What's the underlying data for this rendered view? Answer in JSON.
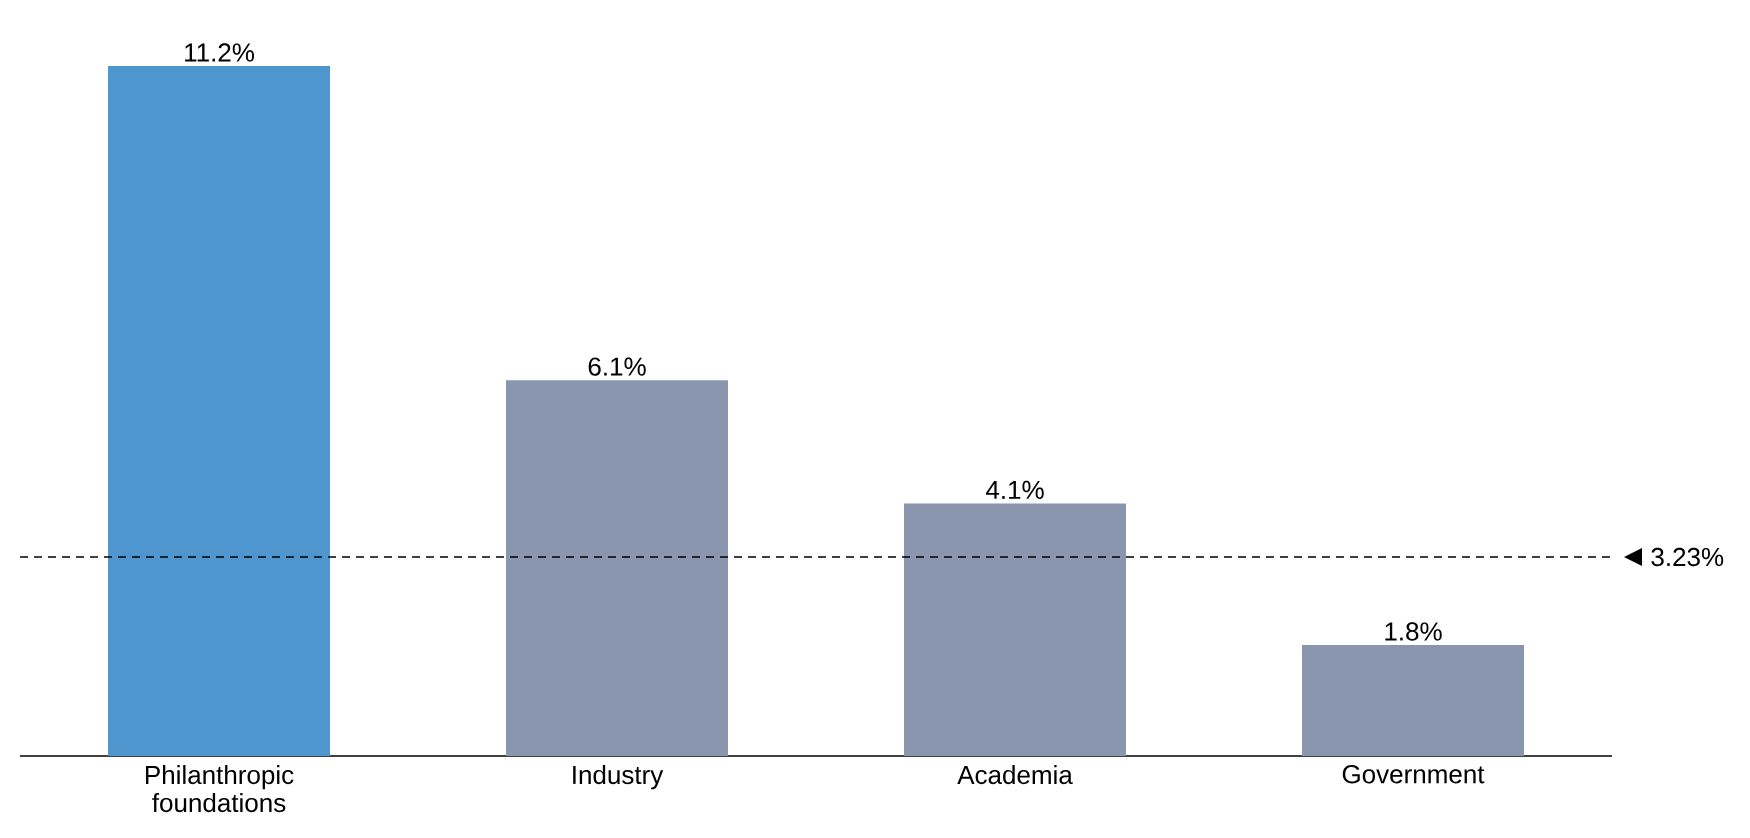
{
  "chart_data": {
    "type": "bar",
    "categories": [
      "Philanthropic foundations",
      "Industry",
      "Academia",
      "Government"
    ],
    "values": [
      11.2,
      6.1,
      4.1,
      1.8
    ],
    "colors": [
      "#4f96cf",
      "#8a96ae",
      "#8a96ae",
      "#8a96ae"
    ],
    "value_labels": [
      "11.2%",
      "6.1%",
      "4.1%",
      "1.8%"
    ],
    "tick_labels": "x",
    "ref_lines": [
      {
        "axis": "y",
        "value": 3.23,
        "label": "3.23%",
        "line_style": "dashed",
        "color": "#000000"
      }
    ]
  }
}
